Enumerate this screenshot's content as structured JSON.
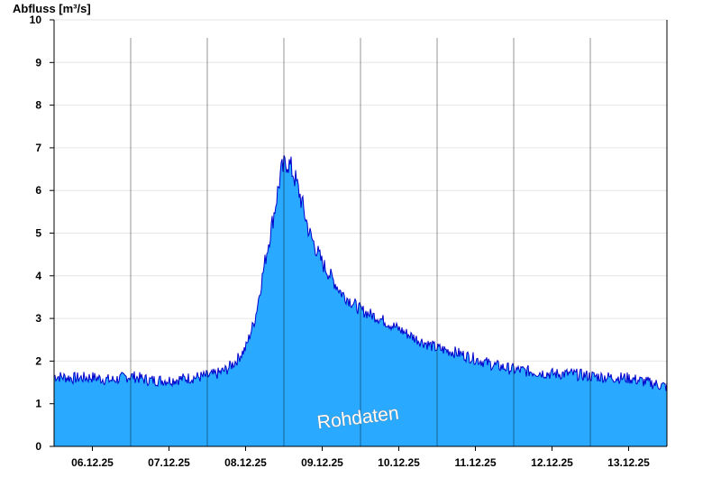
{
  "chart_data": {
    "type": "area",
    "ylabel": "Abfluss [m³/s]",
    "xlabel": "",
    "title": "",
    "watermark": "Rohdaten",
    "ylim": [
      0,
      10
    ],
    "yticks": [
      0,
      1,
      2,
      3,
      4,
      5,
      6,
      7,
      8,
      9,
      10
    ],
    "xlim": [
      "2025-12-05T12:00",
      "2025-12-13T12:00"
    ],
    "xticks": [
      {
        "date": "2025-12-06T00:00",
        "label": "06.12.25"
      },
      {
        "date": "2025-12-07T00:00",
        "label": "07.12.25"
      },
      {
        "date": "2025-12-08T00:00",
        "label": "08.12.25"
      },
      {
        "date": "2025-12-09T00:00",
        "label": "09.12.25"
      },
      {
        "date": "2025-12-10T00:00",
        "label": "10.12.25"
      },
      {
        "date": "2025-12-11T00:00",
        "label": "11.12.25"
      },
      {
        "date": "2025-12-12T00:00",
        "label": "12.12.25"
      },
      {
        "date": "2025-12-13T00:00",
        "label": "13.12.25"
      }
    ],
    "grid": true,
    "colors": {
      "fill": "#29a9ff",
      "line": "#0000cc",
      "grid": "#e6e6e6",
      "axis": "#000000"
    },
    "series": [
      {
        "x": [
          "2025-12-05T12:00",
          "2025-12-05T18:00",
          "2025-12-06T00:00",
          "2025-12-06T06:00",
          "2025-12-06T12:00",
          "2025-12-06T18:00",
          "2025-12-07T00:00",
          "2025-12-07T06:00",
          "2025-12-07T12:00",
          "2025-12-07T15:00",
          "2025-12-07T18:00",
          "2025-12-07T21:00",
          "2025-12-08T00:00",
          "2025-12-08T03:00",
          "2025-12-08T06:00",
          "2025-12-08T09:00",
          "2025-12-08T11:00",
          "2025-12-08T13:00",
          "2025-12-08T15:00",
          "2025-12-08T17:00",
          "2025-12-08T20:00",
          "2025-12-09T00:00",
          "2025-12-09T06:00",
          "2025-12-09T12:00",
          "2025-12-09T18:00",
          "2025-12-10T00:00",
          "2025-12-10T06:00",
          "2025-12-10T12:00",
          "2025-12-10T18:00",
          "2025-12-11T00:00",
          "2025-12-11T06:00",
          "2025-12-11T12:00",
          "2025-12-11T18:00",
          "2025-12-12T00:00",
          "2025-12-12T06:00",
          "2025-12-12T12:00",
          "2025-12-12T18:00",
          "2025-12-13T00:00",
          "2025-12-13T06:00",
          "2025-12-13T12:00"
        ],
        "values": [
          1.65,
          1.6,
          1.62,
          1.55,
          1.65,
          1.55,
          1.55,
          1.6,
          1.65,
          1.7,
          1.8,
          2.0,
          2.3,
          3.0,
          4.3,
          5.5,
          6.4,
          6.7,
          6.4,
          5.9,
          5.0,
          4.3,
          3.6,
          3.2,
          3.0,
          2.75,
          2.5,
          2.3,
          2.2,
          2.05,
          1.9,
          1.8,
          1.75,
          1.7,
          1.7,
          1.65,
          1.62,
          1.6,
          1.5,
          1.4
        ]
      }
    ]
  }
}
